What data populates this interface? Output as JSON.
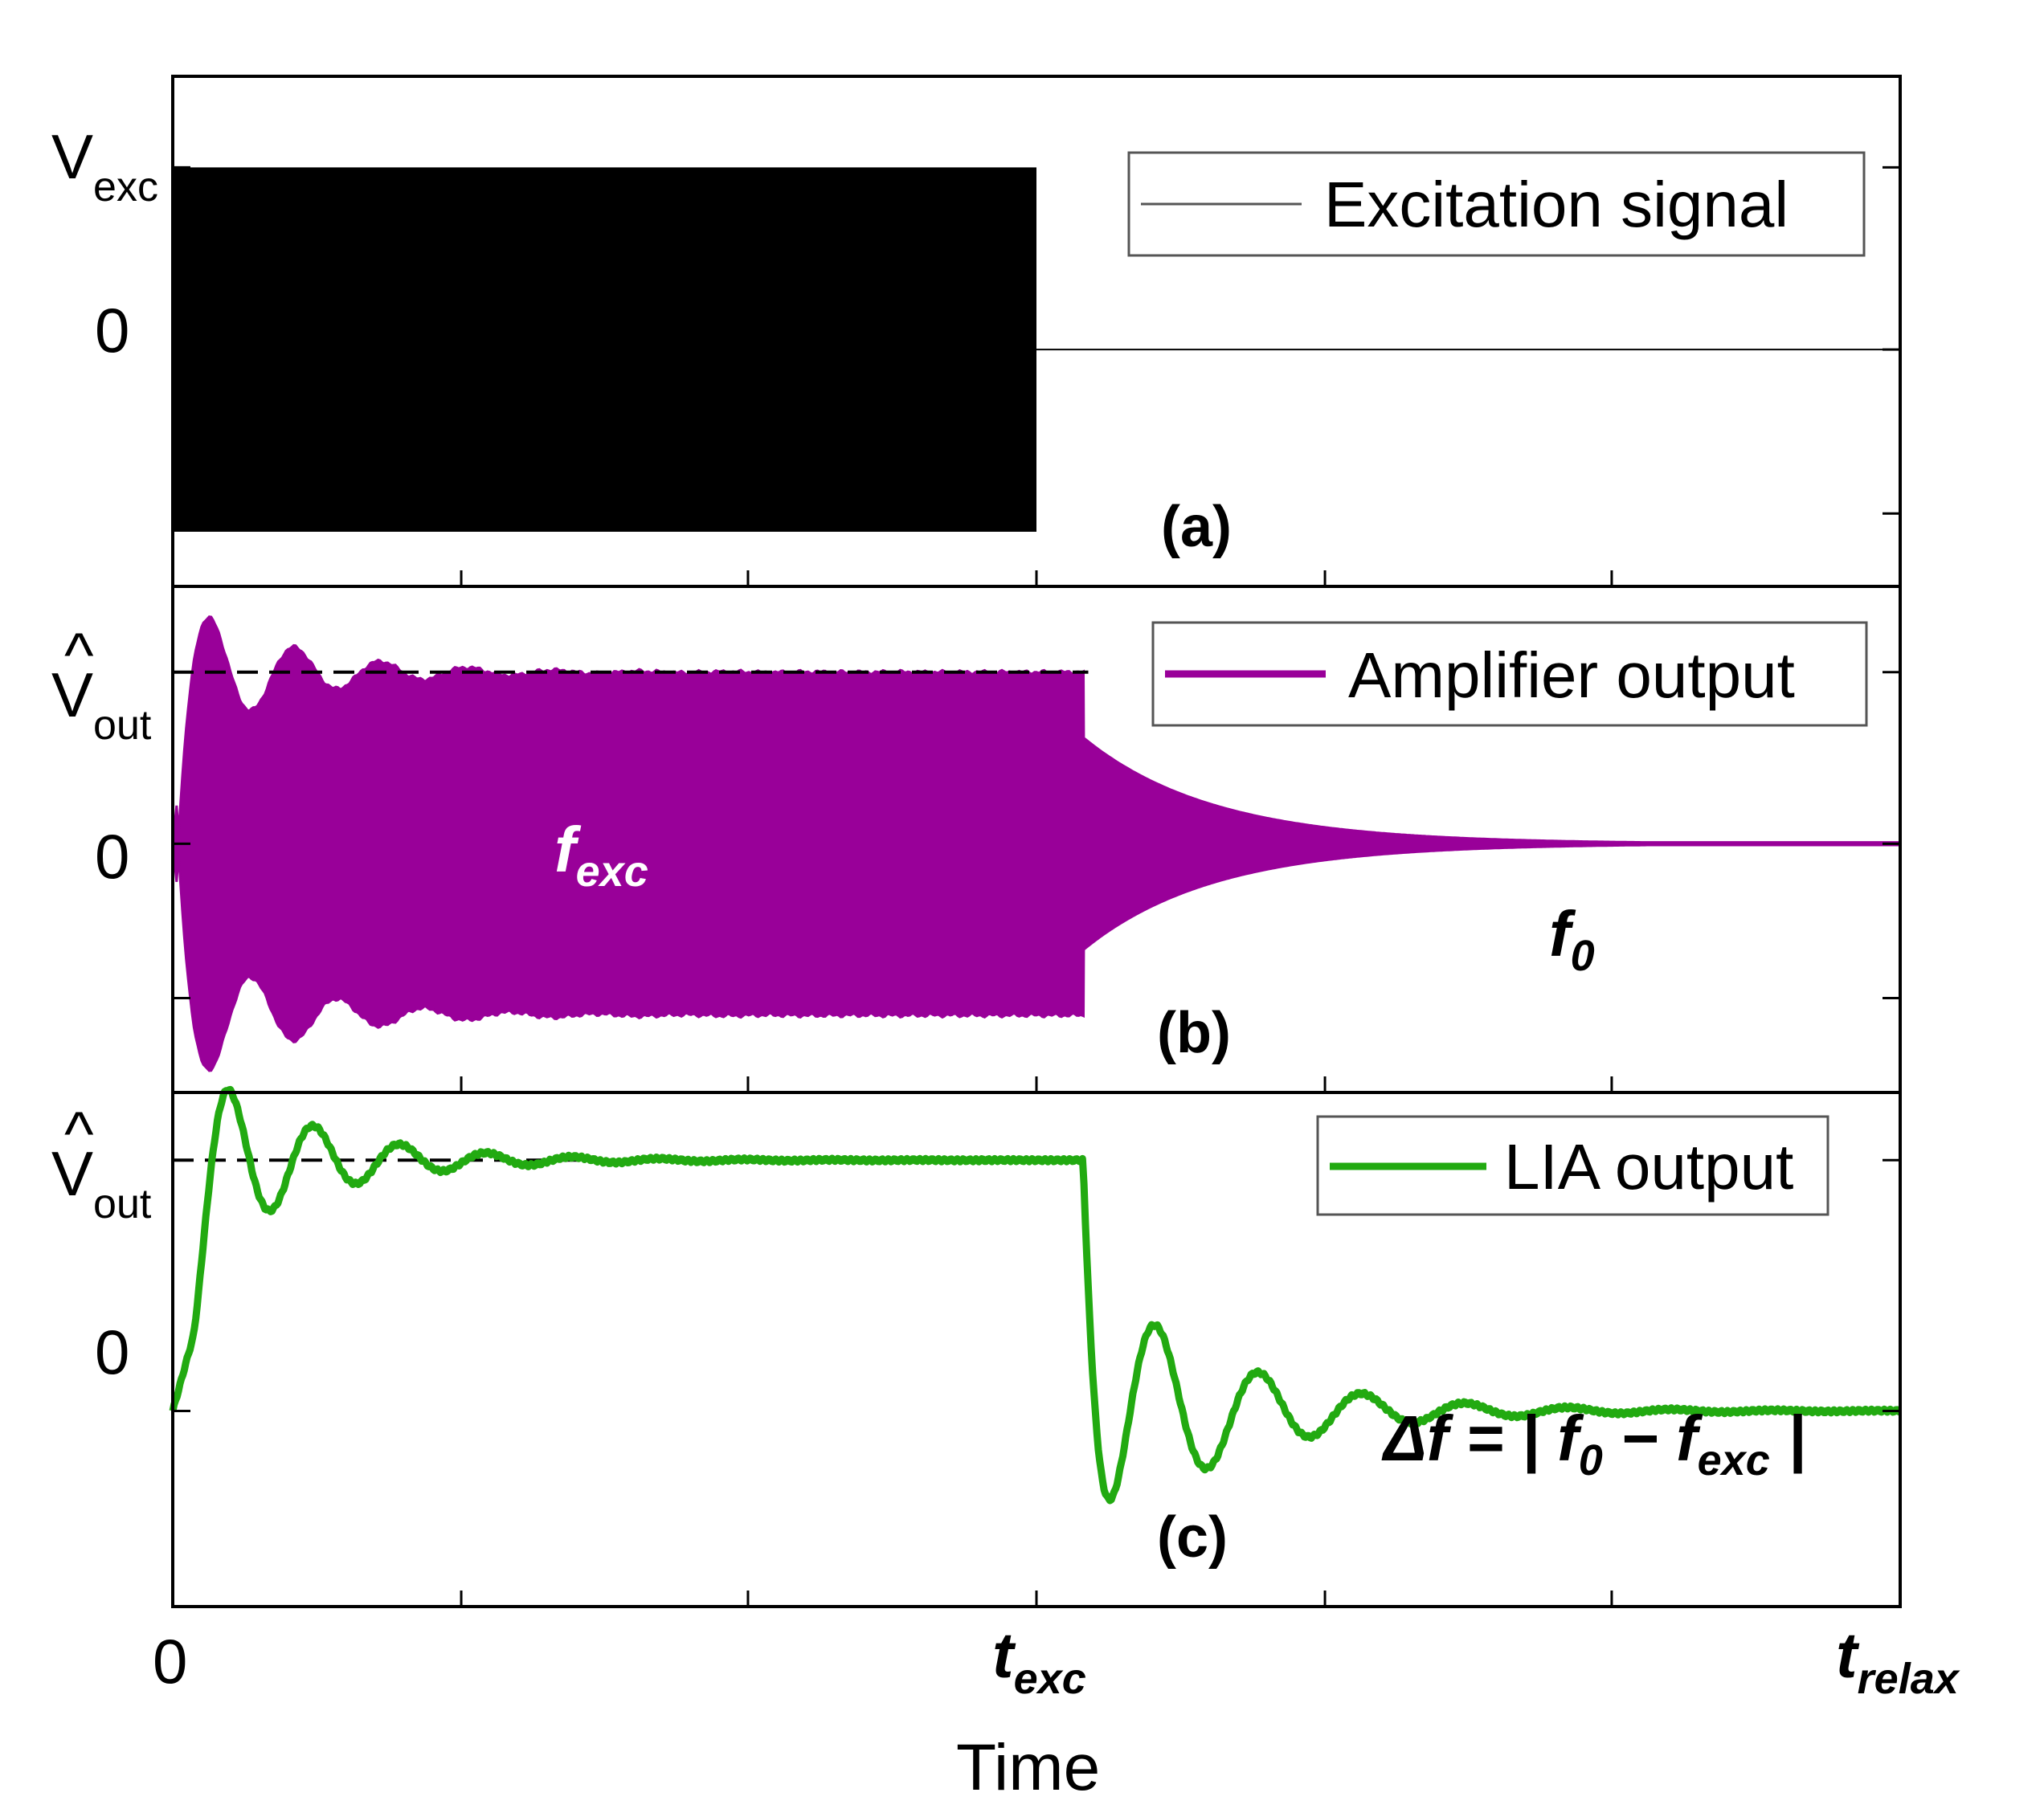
{
  "chart_data": [
    {
      "type": "line",
      "panel": "(a)",
      "legend": "Excitation signal",
      "legend_position": "top-right",
      "y_tick_labels": {
        "amplitude": "V",
        "amplitude_sub": "exc",
        "zero": "0"
      },
      "y_levels": {
        "amplitude": 1,
        "zero": 0
      },
      "ylim": [
        -1.3,
        1.5
      ],
      "series": [
        {
          "name": "Excitation signal",
          "color": "#000000",
          "segments": [
            {
              "kind": "sinusoid",
              "x_from": 0,
              "x_to": 0.5,
              "amplitude": 1
            },
            {
              "kind": "flat",
              "x_from": 0.5,
              "x_to": 1,
              "value": 0
            }
          ]
        }
      ]
    },
    {
      "type": "line",
      "panel": "(b)",
      "legend": "Amplifier output",
      "legend_position": "top-right",
      "y_tick_labels": {
        "amplitude": "V",
        "amplitude_sub": "out",
        "hat": "^",
        "zero": "0"
      },
      "y_levels": {
        "amplitude": 1,
        "zero": 0
      },
      "ylim": [
        -1.45,
        1.5
      ],
      "reference_line": {
        "y": 1,
        "x_from": 0,
        "x_to": 0.53,
        "style": "dashed"
      },
      "annotations": [
        {
          "main": "f",
          "sub": "exc",
          "color": "#ffffff"
        },
        {
          "main": "f",
          "sub": "0",
          "color": "#000000"
        }
      ],
      "series": [
        {
          "name": "Amplifier output",
          "color": "#990099",
          "segments": [
            {
              "kind": "envelope",
              "x_from": 0,
              "x_to": 0.527,
              "steady_amplitude": 1.0,
              "first_peak_amplitude": 1.45,
              "beat_period": 0.05,
              "decay_time": 0.06,
              "start_x": 0.003
            },
            {
              "kind": "decay",
              "x_from": 0.527,
              "x_to": 1,
              "start_amplitude": 0.62,
              "decay_time": 0.075
            }
          ]
        }
      ]
    },
    {
      "type": "line",
      "panel": "(c)",
      "legend": "LIA output",
      "legend_position": "top-right",
      "y_tick_labels": {
        "amplitude": "V",
        "amplitude_sub": "out",
        "hat": "^",
        "zero": "0"
      },
      "y_levels": {
        "amplitude": 1,
        "zero": 0
      },
      "ylim": [
        -0.78,
        1.27
      ],
      "reference_line": {
        "y": 1,
        "x_from": 0,
        "x_to": 0.527,
        "style": "dashed"
      },
      "annotation_formula": {
        "prefix": "Δf = | f",
        "sub1": "0",
        "mid": " − f",
        "sub2": "exc",
        "suffix": " |"
      },
      "series": [
        {
          "name": "LIA output",
          "color": "#22aa11",
          "segments": [
            {
              "kind": "ringing-rise",
              "x_from": 0,
              "x_to": 0.527,
              "target": 1,
              "first_peak": 1.25,
              "first_peak_x": 0.032,
              "oscillation_period": 0.05,
              "decay_time": 0.065
            },
            {
              "kind": "ringing-fall",
              "x_from": 0.527,
              "x_to": 1,
              "target": 0,
              "min_value": -0.52,
              "min_x": 0.555,
              "oscillation_period": 0.055,
              "decay_time": 0.075
            }
          ]
        }
      ]
    }
  ],
  "shared_x_axis": {
    "label": "Time",
    "ticks": [
      {
        "x": 0,
        "label": "0"
      },
      {
        "x": 0.5,
        "label": "t",
        "sub": "exc"
      },
      {
        "x": 1,
        "label": "t",
        "sub": "relax"
      }
    ],
    "minor_ticks": [
      0.167,
      0.333,
      0.667,
      0.833
    ],
    "xlim": [
      0,
      1
    ]
  }
}
